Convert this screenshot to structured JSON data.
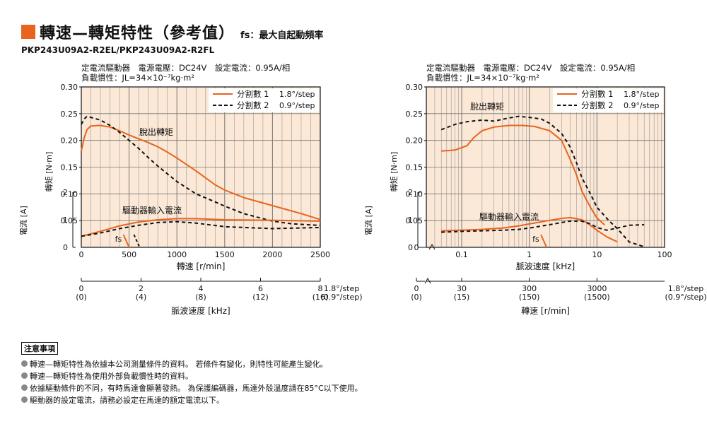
{
  "header": {
    "title": "轉速—轉矩特性（參考值）",
    "fs_note": "fs：最大自起動頻率",
    "model": "PKP243U09A2-R2EL/PKP243U09A2-R2FL",
    "accent_color": "#e8641e"
  },
  "chart_data": [
    {
      "type": "line",
      "condition_line1": "定電流驅動器　電源電壓：DC24V　設定電流：0.95A/相",
      "condition_line2": "負載慣性：JL=34×10⁻⁷kg·m²",
      "xlabel": "轉速 [r/min]",
      "ylabel_torque": "轉矩 [N·m]",
      "ylabel_current": "電流 [A]",
      "xlim": [
        0,
        2500
      ],
      "ylim": [
        0,
        0.3
      ],
      "x_ticks": [
        "0",
        "500",
        "1000",
        "1500",
        "2000",
        "2500"
      ],
      "y_ticks": [
        "0",
        "0.05",
        "0.10",
        "0.15",
        "0.20",
        "0.25",
        "0.30"
      ],
      "current_ticks": [
        "0",
        "1",
        "2"
      ],
      "secondary_axis": {
        "label": "脈波速度 [kHz]",
        "ticks": [
          "0\n(0)",
          "2\n(4)",
          "4\n(8)",
          "6\n(12)",
          "8\n(16)"
        ],
        "unit_note_1": "1.8°/step",
        "unit_note_2": "(0.9°/step)"
      },
      "legend": [
        {
          "name": "分割數 1",
          "step": "1.8°/step",
          "style": "solid",
          "color": "#e8641e"
        },
        {
          "name": "分割數 2",
          "step": "0.9°/step",
          "style": "dashed",
          "color": "#111111"
        }
      ],
      "annotations": {
        "pullout": "脫出轉矩",
        "current": "驅動器輸入電流",
        "fs": "fs"
      },
      "series": [
        {
          "name": "分割數 1",
          "kind": "torque",
          "x": [
            0,
            30,
            60,
            100,
            200,
            300,
            400,
            500,
            600,
            700,
            800,
            900,
            1000,
            1200,
            1400,
            1500,
            1700,
            2000,
            2300,
            2500
          ],
          "values": [
            0.18,
            0.205,
            0.22,
            0.227,
            0.228,
            0.225,
            0.218,
            0.21,
            0.203,
            0.196,
            0.188,
            0.178,
            0.167,
            0.143,
            0.117,
            0.107,
            0.093,
            0.078,
            0.063,
            0.052
          ]
        },
        {
          "name": "分割數 2",
          "kind": "torque",
          "x": [
            0,
            30,
            60,
            100,
            200,
            300,
            400,
            500,
            600,
            700,
            800,
            1000,
            1200,
            1400,
            1500,
            1700,
            2000,
            2200,
            2500
          ],
          "values": [
            0.23,
            0.24,
            0.245,
            0.243,
            0.238,
            0.228,
            0.215,
            0.2,
            0.185,
            0.168,
            0.152,
            0.123,
            0.1,
            0.085,
            0.077,
            0.063,
            0.049,
            0.044,
            0.041
          ]
        },
        {
          "name": "分割數 1",
          "kind": "current",
          "x": [
            0,
            200,
            400,
            600,
            800,
            1000,
            1200,
            1500,
            2000,
            2500
          ],
          "values": [
            0.4,
            0.58,
            0.78,
            0.92,
            1.0,
            1.04,
            1.04,
            1.0,
            0.98,
            0.95
          ]
        },
        {
          "name": "分割數 2",
          "kind": "current",
          "x": [
            0,
            200,
            400,
            600,
            800,
            1000,
            1200,
            1500,
            2000,
            2500
          ],
          "values": [
            0.4,
            0.52,
            0.68,
            0.8,
            0.9,
            0.93,
            0.88,
            0.75,
            0.68,
            0.72
          ]
        }
      ],
      "fs_values": [
        500,
        610
      ]
    },
    {
      "type": "line",
      "condition_line1": "定電流驅動器　電源電壓：DC24V　設定電流：0.95A/相",
      "condition_line2": "負載慣性：JL=34×10⁻⁷kg·m²",
      "xlabel": "脈波速度 [kHz]",
      "xscale": "log",
      "ylabel_torque": "轉矩 [N·m]",
      "ylabel_current": "電流 [A]",
      "xlim": [
        0.03,
        100
      ],
      "ylim": [
        0,
        0.3
      ],
      "x_ticks": [
        "0.1",
        "1",
        "10",
        "100"
      ],
      "y_ticks": [
        "0",
        "0.05",
        "0.10",
        "0.15",
        "0.20",
        "0.25",
        "0.30"
      ],
      "current_ticks": [
        "0",
        "1",
        "2"
      ],
      "secondary_axis": {
        "label": "轉速 [r/min]",
        "ticks": [
          "30\n(15)",
          "300\n(150)",
          "3000\n(1500)"
        ],
        "zero_tick": "0\n(0)",
        "unit_note_1": "1.8°/step",
        "unit_note_2": "(0.9°/step)"
      },
      "legend": [
        {
          "name": "分割數 1",
          "step": "1.8°/step",
          "style": "solid",
          "color": "#e8641e"
        },
        {
          "name": "分割數 2",
          "step": "0.9°/step",
          "style": "dashed",
          "color": "#111111"
        }
      ],
      "annotations": {
        "pullout": "脫出轉矩",
        "current": "驅動器輸入電流",
        "fs": "fs"
      },
      "series": [
        {
          "name": "分割數 1",
          "kind": "torque",
          "x": [
            0.05,
            0.08,
            0.12,
            0.15,
            0.2,
            0.3,
            0.5,
            0.8,
            1.2,
            2,
            3,
            4,
            5,
            6,
            8,
            10,
            13
          ],
          "values": [
            0.18,
            0.182,
            0.19,
            0.205,
            0.218,
            0.225,
            0.228,
            0.228,
            0.226,
            0.218,
            0.2,
            0.165,
            0.135,
            0.105,
            0.075,
            0.055,
            0.042
          ]
        },
        {
          "name": "分割數 2",
          "kind": "torque",
          "x": [
            0.05,
            0.08,
            0.12,
            0.2,
            0.3,
            0.5,
            0.7,
            1,
            1.5,
            2,
            3,
            4,
            5,
            6,
            8,
            10,
            15,
            20,
            30,
            50
          ],
          "values": [
            0.22,
            0.23,
            0.235,
            0.238,
            0.236,
            0.242,
            0.245,
            0.243,
            0.24,
            0.232,
            0.213,
            0.188,
            0.158,
            0.13,
            0.1,
            0.075,
            0.05,
            0.035,
            0.01,
            0.001
          ]
        },
        {
          "name": "分割數 1",
          "kind": "current",
          "x": [
            0.05,
            0.1,
            0.2,
            0.4,
            0.7,
            1,
            2,
            3,
            4,
            6,
            8,
            10,
            14,
            20
          ],
          "values": [
            0.6,
            0.62,
            0.65,
            0.7,
            0.78,
            0.85,
            0.98,
            1.05,
            1.08,
            1.0,
            0.8,
            0.62,
            0.38,
            0.2
          ]
        },
        {
          "name": "分割數 2",
          "kind": "current",
          "x": [
            0.05,
            0.1,
            0.2,
            0.4,
            0.7,
            1,
            2,
            3,
            4,
            6,
            8,
            10,
            14,
            20,
            30,
            50
          ],
          "values": [
            0.55,
            0.58,
            0.6,
            0.62,
            0.65,
            0.7,
            0.82,
            0.9,
            0.95,
            0.95,
            0.85,
            0.72,
            0.62,
            0.7,
            0.8,
            0.82
          ]
        }
      ],
      "fs_values": [
        1.8
      ]
    }
  ],
  "notes": {
    "heading": "注意事項",
    "items": [
      "轉速—轉矩特性為依據本公司測量條件的資料。 若條件有變化，則特性可能產生變化。",
      "轉速—轉矩特性為使用外部負載慣性時的資料。",
      "依據驅動條件的不同，有時馬達會顯著發熱。 為保護編碼器，馬達外殼溫度請在85°C以下使用。",
      "驅動器的設定電流，請務必設定在馬達的額定電流以下。"
    ]
  }
}
